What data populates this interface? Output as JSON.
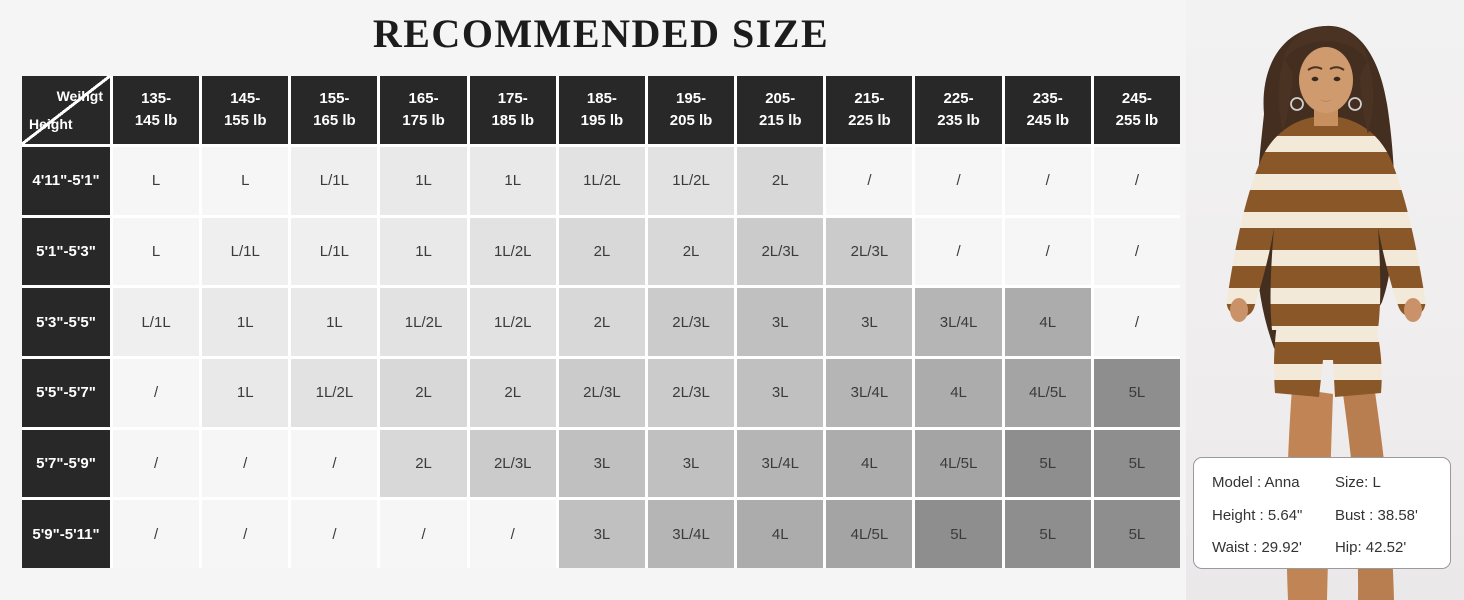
{
  "title": "RECOMMENDED SIZE",
  "table": {
    "corner_top": "Weihgt",
    "corner_bottom": "Height",
    "weight_columns": [
      "135-\n145 lb",
      "145-\n155 lb",
      "155-\n165 lb",
      "165-\n175 lb",
      "175-\n185 lb",
      "185-\n195 lb",
      "195-\n205 lb",
      "205-\n215 lb",
      "215-\n225 lb",
      "225-\n235 lb",
      "235-\n245 lb",
      "245-\n255 lb"
    ],
    "rows": [
      {
        "height": "4'11\"-5'1\"",
        "cells": [
          "L",
          "L",
          "L/1L",
          "1L",
          "1L",
          "1L/2L",
          "1L/2L",
          "2L",
          "/",
          "/",
          "/",
          "/"
        ]
      },
      {
        "height": "5'1\"-5'3\"",
        "cells": [
          "L",
          "L/1L",
          "L/1L",
          "1L",
          "1L/2L",
          "2L",
          "2L",
          "2L/3L",
          "2L/3L",
          "/",
          "/",
          "/"
        ]
      },
      {
        "height": "5'3\"-5'5\"",
        "cells": [
          "L/1L",
          "1L",
          "1L",
          "1L/2L",
          "1L/2L",
          "2L",
          "2L/3L",
          "3L",
          "3L",
          "3L/4L",
          "4L",
          "/"
        ]
      },
      {
        "height": "5'5\"-5'7\"",
        "cells": [
          "/",
          "1L",
          "1L/2L",
          "2L",
          "2L",
          "2L/3L",
          "2L/3L",
          "3L",
          "3L/4L",
          "4L",
          "4L/5L",
          "5L"
        ]
      },
      {
        "height": "5'7\"-5'9\"",
        "cells": [
          "/",
          "/",
          "/",
          "2L",
          "2L/3L",
          "3L",
          "3L",
          "3L/4L",
          "4L",
          "4L/5L",
          "5L",
          "5L"
        ]
      },
      {
        "height": "5'9\"-5'11\"",
        "cells": [
          "/",
          "/",
          "/",
          "/",
          "/",
          "3L",
          "3L/4L",
          "4L",
          "4L/5L",
          "5L",
          "5L",
          "5L"
        ]
      }
    ],
    "size_colors": {
      "/": "#f7f6f6",
      "L": "#f7f6f6",
      "L/1L": "#f0efef",
      "1L": "#eae9e9",
      "1L/2L": "#e3e2e2",
      "2L": "#d9d8d8",
      "2L/3L": "#cbcbcb",
      "3L": "#c0c0c0",
      "3L/4L": "#b5b5b5",
      "4L": "#acacac",
      "4L/5L": "#a4a4a4",
      "5L": "#8e8e8e"
    }
  },
  "model_card": {
    "left_lines": [
      "Model :  Anna",
      "Height :  5.64\"",
      "Waist : 29.92'"
    ],
    "right_lines": [
      "Size: L",
      "Bust : 38.58'",
      "Hip: 42.52'"
    ]
  },
  "colors": {
    "header_bg": "#282828",
    "page_bg": "#f6f5f5",
    "stripe_brown": "#8a5729",
    "stripe_cream": "#f2e9d8",
    "skin": "#c99268",
    "hair": "#432e20"
  },
  "chart_data": {
    "type": "table",
    "title": "RECOMMENDED SIZE",
    "corner_labels": [
      "Weihgt",
      "Height"
    ],
    "columns": [
      "135-145 lb",
      "145-155 lb",
      "155-165 lb",
      "165-175 lb",
      "175-185 lb",
      "185-195 lb",
      "195-205 lb",
      "205-215 lb",
      "215-225 lb",
      "225-235 lb",
      "235-245 lb",
      "245-255 lb"
    ],
    "row_labels": [
      "4'11\"-5'1\"",
      "5'1\"-5'3\"",
      "5'3\"-5'5\"",
      "5'5\"-5'7\"",
      "5'7\"-5'9\"",
      "5'9\"-5'11\""
    ],
    "values": [
      [
        "L",
        "L",
        "L/1L",
        "1L",
        "1L",
        "1L/2L",
        "1L/2L",
        "2L",
        "/",
        "/",
        "/",
        "/"
      ],
      [
        "L",
        "L/1L",
        "L/1L",
        "1L",
        "1L/2L",
        "2L",
        "2L",
        "2L/3L",
        "2L/3L",
        "/",
        "/",
        "/"
      ],
      [
        "L/1L",
        "1L",
        "1L",
        "1L/2L",
        "1L/2L",
        "2L",
        "2L/3L",
        "3L",
        "3L",
        "3L/4L",
        "4L",
        "/"
      ],
      [
        "/",
        "1L",
        "1L/2L",
        "2L",
        "2L",
        "2L/3L",
        "2L/3L",
        "3L",
        "3L/4L",
        "4L",
        "4L/5L",
        "5L"
      ],
      [
        "/",
        "/",
        "/",
        "2L",
        "2L/3L",
        "3L",
        "3L",
        "3L/4L",
        "4L",
        "4L/5L",
        "5L",
        "5L"
      ],
      [
        "/",
        "/",
        "/",
        "/",
        "/",
        "3L",
        "3L/4L",
        "4L",
        "4L/5L",
        "5L",
        "5L",
        "5L"
      ]
    ],
    "legend_note": "cell shading darkens with larger size",
    "annotations": [
      "Model :  Anna",
      "Height :  5.64\"",
      "Waist : 29.92'",
      "Size: L",
      "Bust : 38.58'",
      "Hip: 42.52'"
    ]
  }
}
